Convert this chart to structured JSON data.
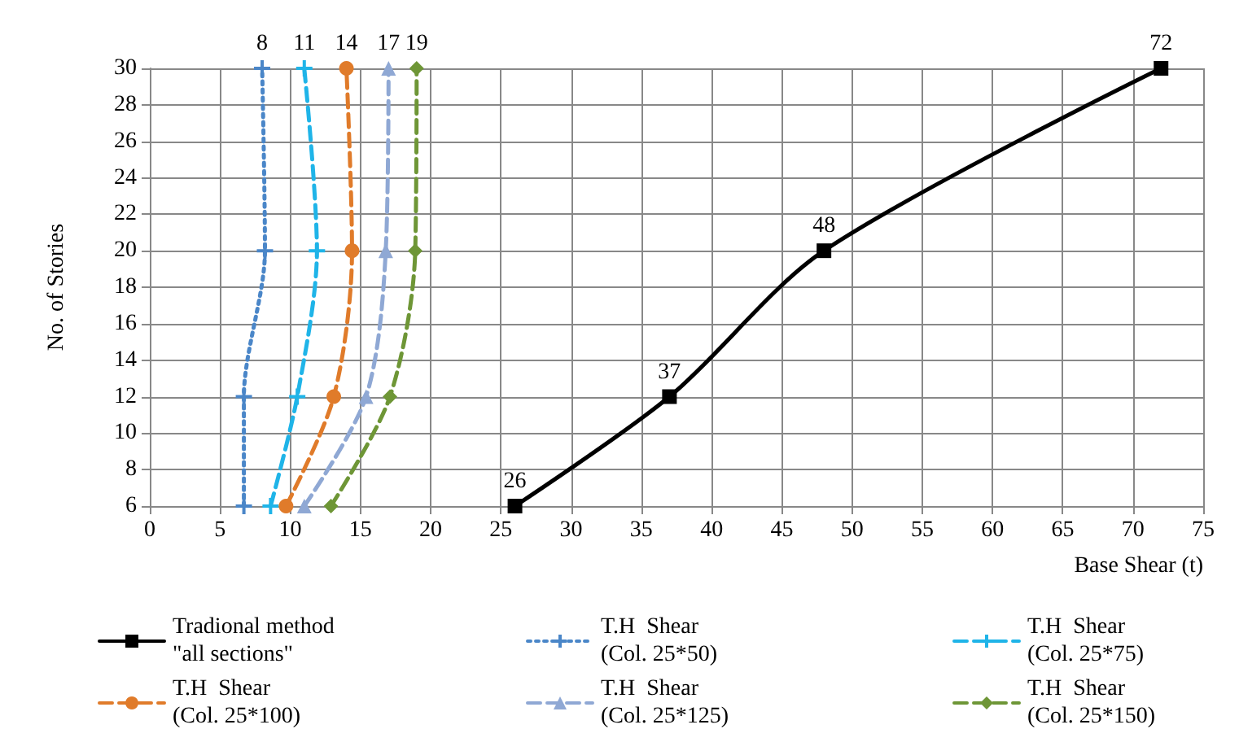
{
  "chart_data": {
    "type": "line",
    "xlabel": "Base Shear (t)",
    "ylabel": "No. of Stories",
    "xlim": [
      0,
      75
    ],
    "xticks": [
      0,
      5,
      10,
      15,
      20,
      25,
      30,
      35,
      40,
      45,
      50,
      55,
      60,
      65,
      70,
      75
    ],
    "ylim": [
      6,
      30
    ],
    "yticks": [
      6,
      8,
      10,
      12,
      14,
      16,
      18,
      20,
      22,
      24,
      26,
      28,
      30
    ],
    "grid": true,
    "legend": "bottom",
    "annotations": [
      {
        "text": "26",
        "x": 26,
        "y": 6
      },
      {
        "text": "37",
        "x": 37,
        "y": 12
      },
      {
        "text": "48",
        "x": 48,
        "y": 20
      },
      {
        "text": "72",
        "x": 72,
        "y": 30
      },
      {
        "text": "8",
        "x": 8,
        "y": 30
      },
      {
        "text": "11",
        "x": 11,
        "y": 30
      },
      {
        "text": "14",
        "x": 14,
        "y": 30
      },
      {
        "text": "17",
        "x": 17,
        "y": 30
      },
      {
        "text": "19",
        "x": 19,
        "y": 30
      }
    ],
    "series": [
      {
        "name": "Tradional method\n\"all sections\"",
        "color": "#000000",
        "marker": "square",
        "line_style": "solid",
        "x": [
          26,
          37,
          48,
          72
        ],
        "values": [
          6,
          12,
          20,
          30
        ]
      },
      {
        "name": "T.H  Shear\n(Col. 25*50)",
        "color": "#4a86c8",
        "marker": "cross",
        "line_style": "dotted",
        "x": [
          6.7,
          6.7,
          8.2,
          8
        ],
        "values": [
          6,
          12,
          20,
          30
        ]
      },
      {
        "name": "T.H  Shear\n(Col. 25*75)",
        "color": "#1fb4e8",
        "marker": "cross",
        "line_style": "dashed",
        "x": [
          8.6,
          10.5,
          11.9,
          11
        ],
        "values": [
          6,
          12,
          20,
          30
        ]
      },
      {
        "name": "T.H  Shear\n(Col. 25*100)",
        "color": "#e07b2a",
        "marker": "circle",
        "line_style": "dashed",
        "x": [
          9.7,
          13.1,
          14.4,
          14
        ],
        "values": [
          6,
          12,
          20,
          30
        ]
      },
      {
        "name": "T.H  Shear\n(Col. 25*125)",
        "color": "#8fa8d4",
        "marker": "triangle",
        "line_style": "dashed",
        "x": [
          11,
          15.4,
          16.8,
          17
        ],
        "values": [
          6,
          12,
          20,
          30
        ]
      },
      {
        "name": "T.H  Shear\n(Col. 25*150)",
        "color": "#6e9636",
        "marker": "diamond",
        "line_style": "dashed",
        "x": [
          12.9,
          17.1,
          18.9,
          19
        ],
        "values": [
          6,
          12,
          20,
          30
        ]
      }
    ]
  }
}
